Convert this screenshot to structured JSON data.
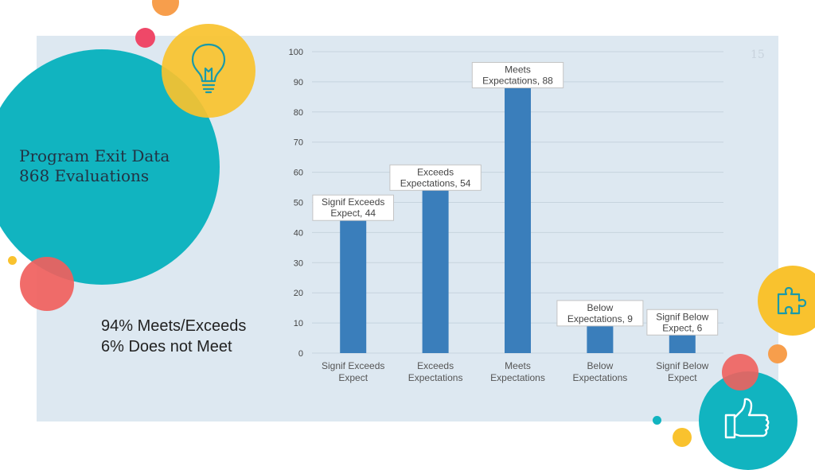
{
  "slide": {
    "title_line1": "Program Exit Data",
    "title_line2": "868 Evaluations",
    "summary_line1": "94% Meets/Exceeds",
    "summary_line2": "6% Does not Meet",
    "page_number": "15",
    "icons": [
      "lightbulb-icon",
      "puzzle-icon",
      "thumbs-up-icon"
    ]
  },
  "colors": {
    "bar": "#3a7ebb",
    "panel": "#dde8f1",
    "teal": "#11b4c0",
    "yellow": "#f9c22e",
    "red": "#f0605d",
    "orange": "#f79e4c",
    "pink": "#ef4868"
  },
  "chart_data": {
    "type": "bar",
    "categories": [
      "Signif Exceeds Expect",
      "Exceeds Expectations",
      "Meets Expectations",
      "Below Expectations",
      "Signif Below Expect"
    ],
    "category_lines": [
      [
        "Signif Exceeds",
        "Expect"
      ],
      [
        "Exceeds",
        "Expectations"
      ],
      [
        "Meets",
        "Expectations"
      ],
      [
        "Below",
        "Expectations"
      ],
      [
        "Signif Below",
        "Expect"
      ]
    ],
    "values": [
      44,
      54,
      88,
      9,
      6
    ],
    "data_labels": [
      [
        "Signif Exceeds",
        "Expect, 44"
      ],
      [
        "Exceeds",
        "Expectations, 54"
      ],
      [
        "Meets",
        "Expectations, 88"
      ],
      [
        "Below",
        "Expectations, 9"
      ],
      [
        "Signif Below",
        "Expect, 6"
      ]
    ],
    "yticks": [
      0,
      10,
      20,
      30,
      40,
      50,
      60,
      70,
      80,
      90,
      100
    ],
    "ylim": [
      0,
      100
    ],
    "title": "",
    "xlabel": "",
    "ylabel": "",
    "grid": true
  }
}
